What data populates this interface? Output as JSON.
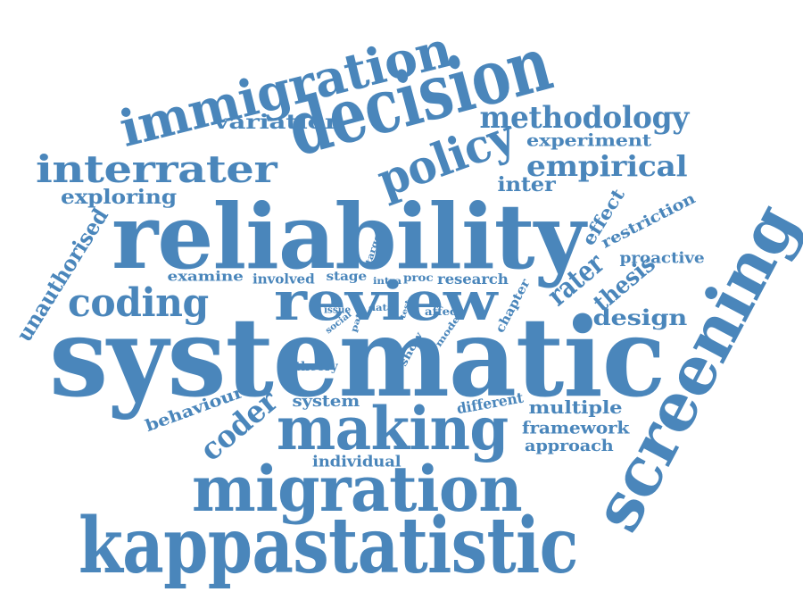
{
  "color": "#4a86bb",
  "words": [
    {
      "key": "kappastatistic",
      "text": "kappastatistic"
    },
    {
      "key": "systematic",
      "text": "systematic"
    },
    {
      "key": "reliability",
      "text": "reliability"
    },
    {
      "key": "decision",
      "text": "decision"
    },
    {
      "key": "screening",
      "text": "screening"
    },
    {
      "key": "migration",
      "text": "migration"
    },
    {
      "key": "making",
      "text": "making"
    },
    {
      "key": "review",
      "text": "review"
    },
    {
      "key": "immigration",
      "text": "immigration"
    },
    {
      "key": "interrater",
      "text": "interrater"
    },
    {
      "key": "policy",
      "text": "policy"
    },
    {
      "key": "coding",
      "text": "coding"
    },
    {
      "key": "methodology",
      "text": "methodology"
    },
    {
      "key": "empirical",
      "text": "empirical"
    },
    {
      "key": "coder",
      "text": "coder"
    },
    {
      "key": "unauthorised",
      "text": "unauthorised"
    },
    {
      "key": "rater",
      "text": "rater"
    },
    {
      "key": "thesis",
      "text": "thesis"
    },
    {
      "key": "design",
      "text": "design"
    },
    {
      "key": "variation",
      "text": "variation"
    },
    {
      "key": "exploring",
      "text": "exploring"
    },
    {
      "key": "experiment",
      "text": "experiment"
    },
    {
      "key": "inter",
      "text": "inter"
    },
    {
      "key": "effect",
      "text": "effect"
    },
    {
      "key": "restriction",
      "text": "restriction"
    },
    {
      "key": "proactive",
      "text": "proactive"
    },
    {
      "key": "multiple",
      "text": "multiple"
    },
    {
      "key": "framework",
      "text": "framework"
    },
    {
      "key": "approach",
      "text": "approach"
    },
    {
      "key": "behaviour",
      "text": "behaviour"
    },
    {
      "key": "system",
      "text": "system"
    },
    {
      "key": "different",
      "text": "different"
    },
    {
      "key": "individual",
      "text": "individual"
    },
    {
      "key": "examine",
      "text": "examine"
    },
    {
      "key": "involved",
      "text": "involved"
    },
    {
      "key": "stage",
      "text": "stage"
    },
    {
      "key": "research",
      "text": "research"
    },
    {
      "key": "proc",
      "text": "proc"
    },
    {
      "key": "intra",
      "text": "intra"
    },
    {
      "key": "target",
      "text": "target"
    },
    {
      "key": "issue",
      "text": "issue"
    },
    {
      "key": "social",
      "text": "social"
    },
    {
      "key": "path",
      "text": "path"
    },
    {
      "key": "data",
      "text": "data"
    },
    {
      "key": "test",
      "text": "test"
    },
    {
      "key": "affect",
      "text": "affect"
    },
    {
      "key": "model",
      "text": "model"
    },
    {
      "key": "chapter",
      "text": "chapter"
    },
    {
      "key": "show",
      "text": "show"
    },
    {
      "key": "theory",
      "text": "theory"
    }
  ]
}
